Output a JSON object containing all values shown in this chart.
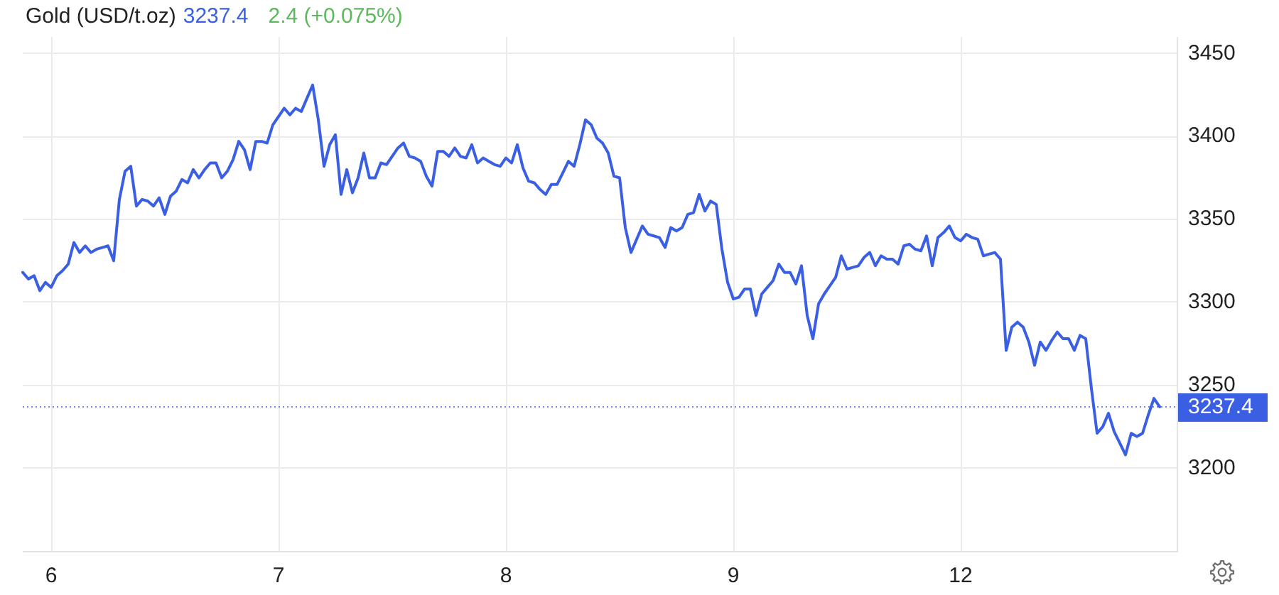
{
  "chart_data": {
    "type": "line",
    "title": "Gold (USD/t.oz)",
    "annotations": [
      "3237.4",
      "2.4 (+0.075%)"
    ],
    "categories": [
      null,
      null,
      null,
      null,
      null,
      "6",
      null,
      null,
      null,
      null,
      null,
      null,
      null,
      null,
      null,
      null,
      null,
      null,
      null,
      null,
      null,
      null,
      null,
      null,
      null,
      null,
      null,
      null,
      null,
      null,
      null,
      null,
      null,
      null,
      null,
      null,
      null,
      null,
      null,
      null,
      null,
      null,
      null,
      null,
      null,
      "7",
      null,
      null,
      null,
      null,
      null,
      null,
      null,
      null,
      null,
      null,
      null,
      null,
      null,
      null,
      null,
      null,
      null,
      null,
      null,
      null,
      null,
      null,
      null,
      null,
      null,
      null,
      null,
      null,
      null,
      null,
      null,
      null,
      null,
      null,
      null,
      null,
      null,
      null,
      null,
      "8",
      null,
      null,
      null,
      null,
      null,
      null,
      null,
      null,
      null,
      null,
      null,
      null,
      null,
      null,
      null,
      null,
      null,
      null,
      null,
      null,
      null,
      null,
      null,
      null,
      null,
      null,
      null,
      null,
      null,
      null,
      null,
      null,
      null,
      null,
      null,
      null,
      null,
      null,
      null,
      "9",
      null,
      null,
      null,
      null,
      null,
      null,
      null,
      null,
      null,
      null,
      null,
      null,
      null,
      null,
      null,
      null,
      null,
      null,
      null,
      null,
      null,
      null,
      null,
      null,
      null,
      null,
      null,
      null,
      null,
      null,
      null,
      null,
      null,
      null,
      null,
      null,
      null,
      null,
      null,
      "12",
      null,
      null,
      null,
      null,
      null,
      null,
      null,
      null,
      null,
      null,
      null,
      null,
      null,
      null,
      null,
      null,
      null,
      null,
      null,
      null,
      null,
      null,
      null,
      null,
      null,
      null,
      null,
      null,
      null,
      null,
      null,
      null,
      null,
      null,
      null,
      null,
      null,
      null
    ],
    "series": [
      {
        "color": "#3b5fe3",
        "values": [
          3318,
          3314,
          3316,
          3307,
          3312,
          3309,
          3316,
          3319,
          3323,
          3336,
          3330,
          3334,
          3330,
          3332,
          3333,
          3334,
          3325,
          3362,
          3379,
          3382,
          3358,
          3362,
          3361,
          3358,
          3363,
          3353,
          3364,
          3367,
          3374,
          3372,
          3380,
          3375,
          3380,
          3384,
          3384,
          3375,
          3379,
          3386,
          3397,
          3392,
          3380,
          3397,
          3397,
          3396,
          3407,
          3412,
          3417,
          3413,
          3417,
          3415,
          3423,
          3431,
          3410,
          3382,
          3395,
          3401,
          3365,
          3380,
          3366,
          3375,
          3390,
          3375,
          3375,
          3384,
          3383,
          3388,
          3393,
          3396,
          3388,
          3387,
          3385,
          3376,
          3370,
          3391,
          3391,
          3388,
          3393,
          3388,
          3387,
          3395,
          3384,
          3387,
          3385,
          3383,
          3382,
          3387,
          3384,
          3395,
          3381,
          3373,
          3372,
          3368,
          3365,
          3371,
          3371,
          3378,
          3385,
          3382,
          3395,
          3410,
          3407,
          3399,
          3396,
          3390,
          3376,
          3375,
          3345,
          3330,
          3338,
          3346,
          3341,
          3340,
          3339,
          3333,
          3345,
          3343,
          3345,
          3353,
          3354,
          3365,
          3355,
          3361,
          3359,
          3332,
          3312,
          3302,
          3303,
          3308,
          3308,
          3292,
          3305,
          3309,
          3313,
          3323,
          3318,
          3318,
          3311,
          3322,
          3292,
          3278,
          3299,
          3305,
          3310,
          3315,
          3328,
          3320,
          3321,
          3322,
          3327,
          3330,
          3322,
          3328,
          3326,
          3326,
          3323,
          3334,
          3335,
          3332,
          3331,
          3340,
          3322,
          3339,
          3342,
          3346,
          3339,
          3337,
          3341,
          3339,
          3338,
          3328,
          3329,
          3330,
          3326,
          3271,
          3285,
          3288,
          3285,
          3276,
          3262,
          3276,
          3271,
          3277,
          3282,
          3278,
          3278,
          3271,
          3280,
          3278,
          3248,
          3221,
          3225,
          3233,
          3222,
          3215,
          3208,
          3221,
          3219,
          3221,
          3232,
          3242,
          3237,
          null,
          null,
          null
        ]
      }
    ],
    "ylim": [
      3150,
      3460
    ],
    "yticks": [
      3200,
      3250,
      3300,
      3350,
      3400,
      3450
    ],
    "ref_lines": [
      {
        "axis": "y",
        "value": 3237.4,
        "label": "3237.4",
        "color": "#3b5fe3",
        "line_style": "dotted"
      }
    ],
    "grid": true,
    "line_style": "solid"
  }
}
